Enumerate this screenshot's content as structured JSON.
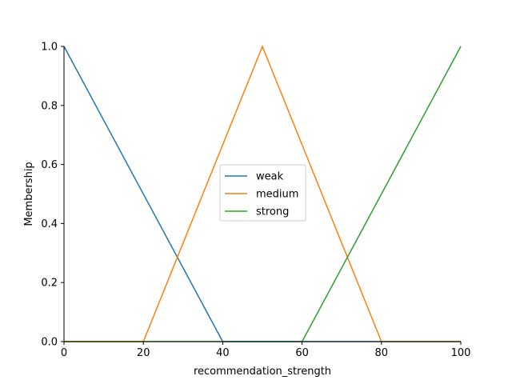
{
  "chart_data": {
    "type": "line",
    "title": "",
    "xlabel": "recommendation_strength",
    "ylabel": "Membership",
    "xlim": [
      0,
      100
    ],
    "ylim": [
      0,
      1.0
    ],
    "xticks": [
      0,
      20,
      40,
      60,
      80,
      100
    ],
    "yticks": [
      0.0,
      0.2,
      0.4,
      0.6,
      0.8,
      1.0
    ],
    "ytick_labels": [
      "0.0",
      "0.2",
      "0.4",
      "0.6",
      "0.8",
      "1.0"
    ],
    "grid": false,
    "legend_position": "center",
    "series": [
      {
        "name": "weak",
        "color": "#1f77b4",
        "x": [
          0,
          40,
          100
        ],
        "y": [
          1.0,
          0.0,
          0.0
        ]
      },
      {
        "name": "medium",
        "color": "#ff7f0e",
        "x": [
          0,
          20,
          50,
          80,
          100
        ],
        "y": [
          0.0,
          0.0,
          1.0,
          0.0,
          0.0
        ]
      },
      {
        "name": "strong",
        "color": "#2ca02c",
        "x": [
          0,
          60,
          100
        ],
        "y": [
          0.0,
          0.0,
          1.0
        ]
      }
    ]
  }
}
